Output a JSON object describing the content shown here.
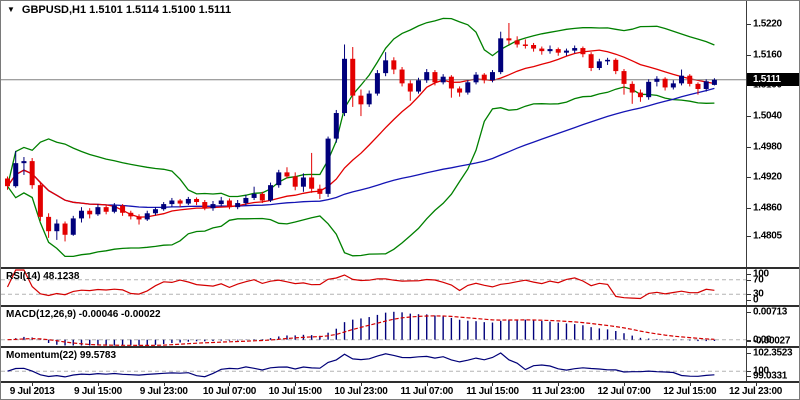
{
  "window": {
    "title_text": "GBPUSD,H1 1.5101 1.5114 1.5100 1.5111"
  },
  "colors": {
    "bull": "#00007b",
    "bear": "#e30000",
    "bollinger": "#008000",
    "ma_fast": "#e30000",
    "ma_slow": "#1414b4",
    "rsi": "#d40000",
    "macd_hist": "#00007b",
    "macd_signal": "#d40000",
    "momentum": "#000078",
    "price_line": "#808080",
    "badge_bg": "#000000",
    "badge_text": "#ffffff",
    "grid_dash": "#b4b4b4"
  },
  "price_axis": {
    "labels": [
      "1.5220",
      "1.5160",
      "1.5100",
      "1.5040",
      "1.4980",
      "1.4920",
      "1.4860",
      "1.4805"
    ],
    "current_price": "1.5111"
  },
  "panes": {
    "rsi": {
      "label": "RSI(14) 48.1238",
      "axis_labels": [
        "100",
        "70",
        "30",
        "0"
      ],
      "levels": [
        70,
        30
      ],
      "range": [
        0,
        100
      ]
    },
    "macd": {
      "label": "MACD(12,26,9) -0.00046 -0.00022",
      "axis_labels": [
        "0.00713",
        "0.00",
        "-0.00027"
      ],
      "range": [
        -0.0015,
        0.0078
      ]
    },
    "momentum": {
      "label": "Momentum(22) 99.5783",
      "axis_labels": [
        "102.3523",
        "100",
        "99.0331"
      ],
      "level": 100,
      "range": [
        98.9,
        102.6
      ]
    }
  },
  "time_axis": {
    "labels": [
      "9 Jul 2013",
      "9 Jul 15:00",
      "9 Jul 23:00",
      "10 Jul 07:00",
      "10 Jul 15:00",
      "10 Jul 23:00",
      "11 Jul 07:00",
      "11 Jul 15:00",
      "11 Jul 23:00",
      "12 Jul 07:00",
      "12 Jul 15:00",
      "12 Jul 23:00"
    ],
    "first_bar_index": 3,
    "bar_step": 8
  },
  "chart_data": {
    "type": "candlestick",
    "symbol": "GBPUSD",
    "timeframe": "H1",
    "ohlc_display": {
      "open": "1.5101",
      "high": "1.5114",
      "low": "1.5100",
      "close": "1.5111"
    },
    "price_ylim": [
      1.4745,
      1.5265
    ],
    "overlays": {
      "bollinger": {
        "period": 20,
        "deviation": 2
      },
      "ma_fast": {
        "period": 13
      },
      "ma_slow": {
        "period": 55
      }
    },
    "indicators": {
      "rsi": {
        "period": 14,
        "value": "48.1238"
      },
      "macd": {
        "fast": 12,
        "slow": 26,
        "signal": 9,
        "values": [
          "-0.00046",
          "-0.00022"
        ]
      },
      "momentum": {
        "period": 22,
        "value": "99.5783"
      }
    },
    "candles": [
      [
        1.4918,
        1.4922,
        1.4896,
        1.4903
      ],
      [
        1.4903,
        1.4972,
        1.49,
        1.4948
      ],
      [
        1.4948,
        1.496,
        1.4925,
        1.4952
      ],
      [
        1.4952,
        1.4958,
        1.4898,
        1.4905
      ],
      [
        1.4905,
        1.4912,
        1.4835,
        1.4843
      ],
      [
        1.4843,
        1.485,
        1.4802,
        1.4815
      ],
      [
        1.4815,
        1.4838,
        1.4798,
        1.483
      ],
      [
        1.483,
        1.4834,
        1.4795,
        1.4808
      ],
      [
        1.4808,
        1.4845,
        1.4806,
        1.484
      ],
      [
        1.484,
        1.4862,
        1.4832,
        1.4855
      ],
      [
        1.4855,
        1.486,
        1.484,
        1.4848
      ],
      [
        1.4848,
        1.4868,
        1.4845,
        1.4862
      ],
      [
        1.4862,
        1.4866,
        1.4848,
        1.4853
      ],
      [
        1.4853,
        1.487,
        1.485,
        1.4865
      ],
      [
        1.4865,
        1.4868,
        1.4845,
        1.4851
      ],
      [
        1.4851,
        1.4855,
        1.4838,
        1.4844
      ],
      [
        1.4844,
        1.4848,
        1.4828,
        1.4838
      ],
      [
        1.4838,
        1.4855,
        1.4835,
        1.485
      ],
      [
        1.485,
        1.4862,
        1.4846,
        1.4858
      ],
      [
        1.4858,
        1.4872,
        1.4855,
        1.4868
      ],
      [
        1.4868,
        1.488,
        1.4862,
        1.4875
      ],
      [
        1.4875,
        1.4878,
        1.4862,
        1.4869
      ],
      [
        1.4869,
        1.4882,
        1.4866,
        1.4878
      ],
      [
        1.4878,
        1.4881,
        1.4866,
        1.4872
      ],
      [
        1.4872,
        1.4876,
        1.4856,
        1.486
      ],
      [
        1.486,
        1.4874,
        1.4855,
        1.4868
      ],
      [
        1.4868,
        1.4882,
        1.4864,
        1.4875
      ],
      [
        1.4875,
        1.4879,
        1.4858,
        1.4862
      ],
      [
        1.4862,
        1.4876,
        1.4858,
        1.487
      ],
      [
        1.487,
        1.4886,
        1.4866,
        1.488
      ],
      [
        1.488,
        1.4902,
        1.4876,
        1.4888
      ],
      [
        1.4888,
        1.4892,
        1.487,
        1.4875
      ],
      [
        1.4875,
        1.491,
        1.4872,
        1.4905
      ],
      [
        1.4905,
        1.4935,
        1.49,
        1.493
      ],
      [
        1.493,
        1.494,
        1.4918,
        1.4922
      ],
      [
        1.4922,
        1.493,
        1.4895,
        1.4902
      ],
      [
        1.4902,
        1.4928,
        1.4892,
        1.492
      ],
      [
        1.492,
        1.4968,
        1.489,
        1.4898
      ],
      [
        1.4898,
        1.4906,
        1.4878,
        1.4888
      ],
      [
        1.4888,
        1.5,
        1.4882,
        1.4996
      ],
      [
        1.4996,
        1.5052,
        1.4988,
        1.5046
      ],
      [
        1.5046,
        1.518,
        1.504,
        1.5152
      ],
      [
        1.5152,
        1.5175,
        1.5058,
        1.508
      ],
      [
        1.508,
        1.5092,
        1.504,
        1.5063
      ],
      [
        1.5063,
        1.509,
        1.5058,
        1.5084
      ],
      [
        1.5084,
        1.513,
        1.508,
        1.5124
      ],
      [
        1.5124,
        1.5165,
        1.5118,
        1.5149
      ],
      [
        1.5149,
        1.5155,
        1.5122,
        1.5131
      ],
      [
        1.5131,
        1.5136,
        1.5098,
        1.5104
      ],
      [
        1.5104,
        1.511,
        1.507,
        1.5088
      ],
      [
        1.5088,
        1.5115,
        1.5084,
        1.511
      ],
      [
        1.511,
        1.5132,
        1.5105,
        1.5126
      ],
      [
        1.5126,
        1.513,
        1.51,
        1.5106
      ],
      [
        1.5106,
        1.5122,
        1.5102,
        1.5117
      ],
      [
        1.5117,
        1.512,
        1.5076,
        1.5094
      ],
      [
        1.5094,
        1.5098,
        1.5078,
        1.5086
      ],
      [
        1.5086,
        1.511,
        1.5082,
        1.5106
      ],
      [
        1.5106,
        1.5126,
        1.5102,
        1.5121
      ],
      [
        1.5121,
        1.5124,
        1.5104,
        1.511
      ],
      [
        1.511,
        1.513,
        1.5106,
        1.5126
      ],
      [
        1.5126,
        1.5205,
        1.5122,
        1.5192
      ],
      [
        1.5192,
        1.5222,
        1.518,
        1.5188
      ],
      [
        1.5188,
        1.5196,
        1.5174,
        1.518
      ],
      [
        1.518,
        1.519,
        1.5172,
        1.5179
      ],
      [
        1.5179,
        1.5183,
        1.5166,
        1.5172
      ],
      [
        1.5172,
        1.5176,
        1.516,
        1.5167
      ],
      [
        1.5167,
        1.5178,
        1.5162,
        1.5171
      ],
      [
        1.5171,
        1.5174,
        1.5158,
        1.5164
      ],
      [
        1.5164,
        1.5172,
        1.5158,
        1.5168
      ],
      [
        1.5168,
        1.5178,
        1.5163,
        1.5173
      ],
      [
        1.5173,
        1.5176,
        1.5155,
        1.5161
      ],
      [
        1.5161,
        1.5165,
        1.5128,
        1.5134
      ],
      [
        1.5134,
        1.5152,
        1.513,
        1.5147
      ],
      [
        1.5147,
        1.5154,
        1.514,
        1.515
      ],
      [
        1.515,
        1.5153,
        1.5122,
        1.5128
      ],
      [
        1.5128,
        1.5132,
        1.5082,
        1.5103
      ],
      [
        1.5103,
        1.5108,
        1.5064,
        1.5086
      ],
      [
        1.5086,
        1.5092,
        1.5068,
        1.5077
      ],
      [
        1.5077,
        1.5112,
        1.5072,
        1.5107
      ],
      [
        1.5107,
        1.5118,
        1.5098,
        1.5113
      ],
      [
        1.5113,
        1.5116,
        1.509,
        1.5096
      ],
      [
        1.5096,
        1.511,
        1.5092,
        1.5104
      ],
      [
        1.5104,
        1.5131,
        1.51,
        1.5119
      ],
      [
        1.5119,
        1.5122,
        1.5098,
        1.5103
      ],
      [
        1.5103,
        1.5106,
        1.5082,
        1.5093
      ],
      [
        1.5093,
        1.5112,
        1.5088,
        1.5108
      ],
      [
        1.5101,
        1.5114,
        1.51,
        1.5111
      ]
    ]
  }
}
